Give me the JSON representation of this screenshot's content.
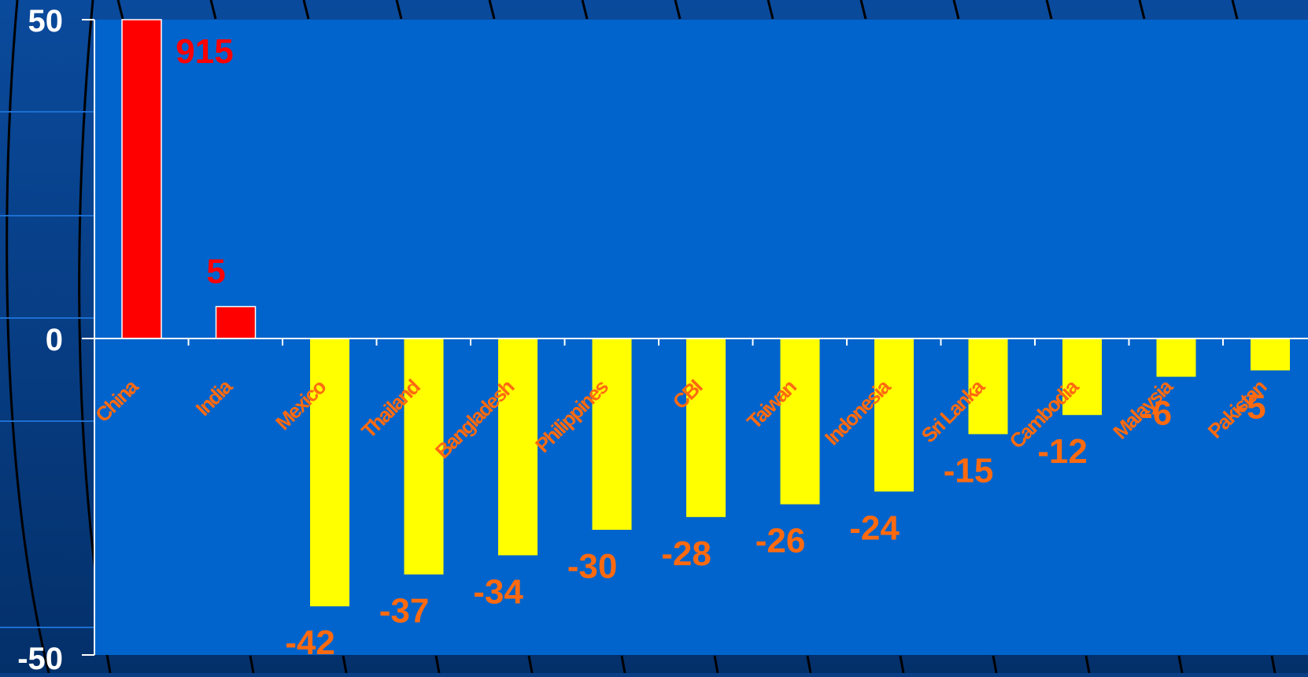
{
  "chart_data": {
    "type": "bar",
    "title": "",
    "xlabel": "",
    "ylabel": "",
    "ylim": [
      -50,
      50
    ],
    "yticks": [
      "-50",
      "0",
      "50"
    ],
    "categories": [
      "China",
      "India",
      "Mexico",
      "Thailand",
      "Bangladesh",
      "Philippines",
      "CBI",
      "Taiwan",
      "Indonesia",
      "Sri Lanka",
      "Cambodia",
      "Malaysia",
      "Pakistan"
    ],
    "values": [
      915,
      5,
      -42,
      -37,
      -34,
      -30,
      -28,
      -26,
      -24,
      -15,
      -12,
      -6,
      -5
    ],
    "data_labels": [
      "915",
      "5",
      "-42",
      "-37",
      "-34",
      "-30",
      "-28",
      "-26",
      "-24",
      "-15",
      "-12",
      "-6",
      "-5"
    ],
    "colors": {
      "positive": "#ff0000",
      "negative": "#ffff00",
      "positive_label": "#ff0000",
      "negative_label": "#ff6a10",
      "category_label": "#ff6a10",
      "plot_background": "#0064cc",
      "axis": "#ffffff",
      "tick_label": "#ffffff"
    }
  }
}
